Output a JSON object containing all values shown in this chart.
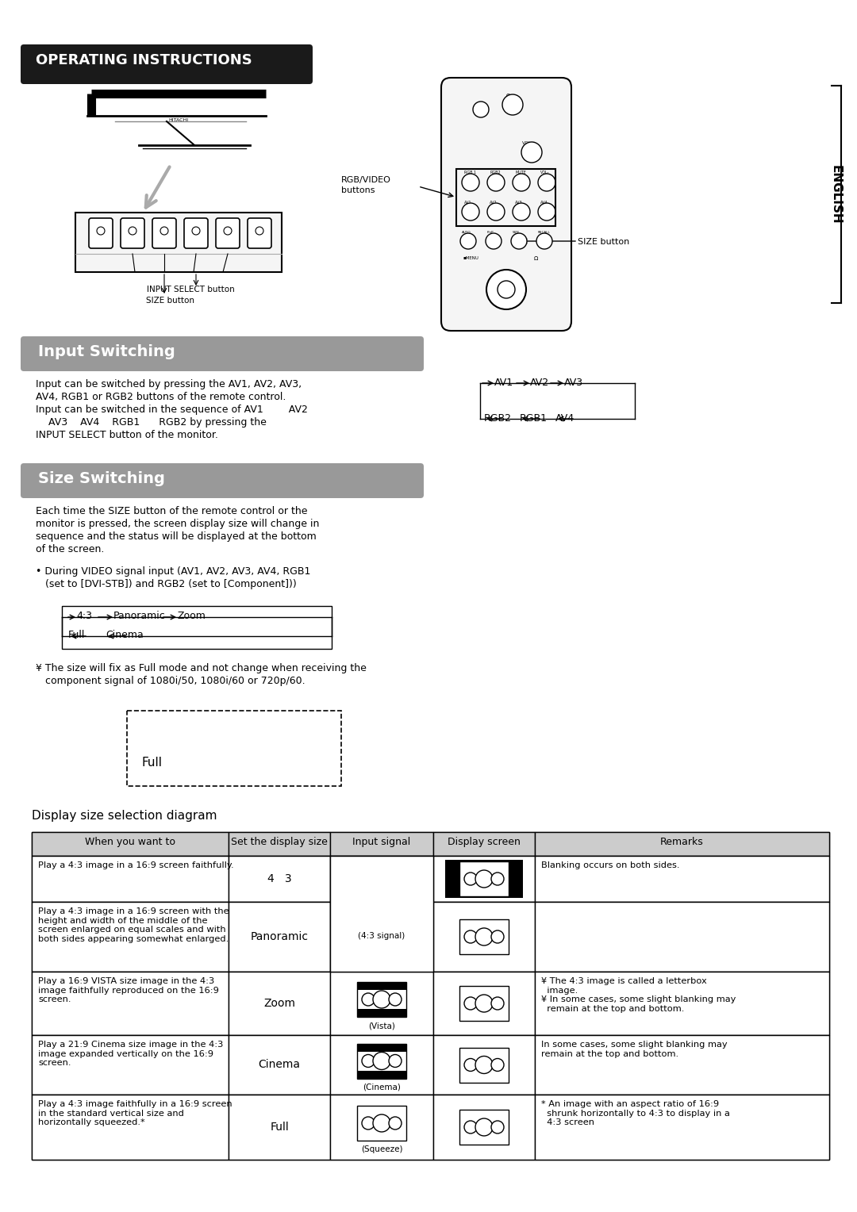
{
  "title": "OPERATING INSTRUCTIONS",
  "title_bg": "#1a1a1a",
  "title_color": "#ffffff",
  "section1_title": "Input Switching",
  "section1_bg": "#999999",
  "section2_title": "Size Switching",
  "section2_bg": "#999999",
  "section1_text_lines": [
    "Input can be switched by pressing the AV1, AV2, AV3,",
    "AV4, RGB1 or RGB2 buttons of the remote control.",
    "Input can be switched in the sequence of AV1        AV2",
    "    AV3    AV4    RGB1      RGB2 by pressing the",
    "INPUT SELECT button of the monitor."
  ],
  "section2_text_lines": [
    "Each time the SIZE button of the remote control or the",
    "monitor is pressed, the screen display size will change in",
    "sequence and the status will be displayed at the bottom",
    "of the screen."
  ],
  "bullet_text_lines": [
    "• During VIDEO signal input (AV1, AV2, AV3, AV4, RGB1",
    "   (set to [DVI-STB]) and RGB2 (set to [Component]))"
  ],
  "note_text_lines": [
    "¥ The size will fix as Full mode and not change when receiving the",
    "   component signal of 1080i/50, 1080i/60 or 720p/60."
  ],
  "full_box_label": "Full",
  "diagram_title": "Display size selection diagram",
  "table_headers": [
    "When you want to",
    "Set the display size",
    "Input signal",
    "Display screen",
    "Remarks"
  ],
  "table_rows": [
    {
      "when": "Play a 4:3 image in a 16:9 screen faithfully.",
      "size": "4   3",
      "input_desc": "",
      "input_has_black_bar": false,
      "display_border_sides": true,
      "remarks": "Blanking occurs on both sides."
    },
    {
      "when": "Play a 4:3 image in a 16:9 screen with the\nheight and width of the middle of the\nscreen enlarged on equal scales and with\nboth sides appearing somewhat enlarged.",
      "size": "Panoramic",
      "input_desc": "(4:3 signal)",
      "input_has_black_bar": false,
      "display_border_sides": false,
      "remarks": ""
    },
    {
      "when": "Play a 16:9 VISTA size image in the 4:3\nimage faithfully reproduced on the 16:9\nscreen.",
      "size": "Zoom",
      "input_desc": "(Vista)",
      "input_has_black_bar": true,
      "display_border_sides": false,
      "remarks": "¥ The 4:3 image is called a letterbox\n  image.\n¥ In some cases, some slight blanking may\n  remain at the top and bottom."
    },
    {
      "when": "Play a 21:9 Cinema size image in the 4:3\nimage expanded vertically on the 16:9\nscreen.",
      "size": "Cinema",
      "input_desc": "(Cinema)",
      "input_has_black_bar": true,
      "display_border_sides": false,
      "remarks": "In some cases, some slight blanking may\nremain at the top and bottom."
    },
    {
      "when": "Play a 4:3 image faithfully in a 16:9 screen\nin the standard vertical size and\nhorizontally squeezed.*",
      "size": "Full",
      "input_desc": "(Squeeze)",
      "input_has_black_bar": false,
      "display_border_sides": false,
      "remarks": "* An image with an aspect ratio of 16:9\n  shrunk horizontally to 4:3 to display in a\n  4:3 screen"
    }
  ],
  "bg_color": "#ffffff",
  "english_label": "ENGLISH"
}
